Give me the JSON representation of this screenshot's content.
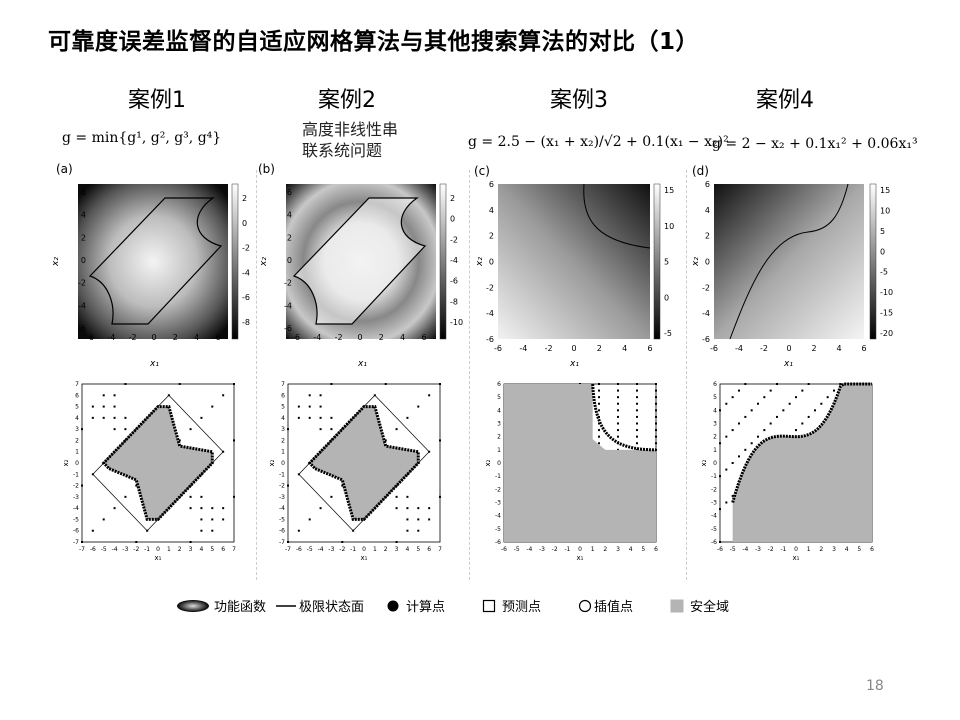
{
  "title": "可靠度误差监督的自适应网格算法与其他搜索算法的对比（1）",
  "cases": [
    "案例1",
    "案例2",
    "案例3",
    "案例4"
  ],
  "formulas": {
    "f1": "g = min{g¹, g², g³, g⁴}",
    "f3": "g = 2.5 − (x₁ + x₂)/√2 + 0.1(x₁ − x₂)²",
    "f4": "g = 2 − x₂ + 0.1x₁² + 0.06x₁³"
  },
  "subtitle": [
    "高度非线性串",
    "联系统问题"
  ],
  "panel_labels": [
    "(a)",
    "(b)",
    "(c)",
    "(d)"
  ],
  "axis": {
    "x_label": "x₁",
    "y_label": "x₂"
  },
  "ticks_top": [
    "-6",
    "-4",
    "-2",
    "0",
    "2",
    "4",
    "6"
  ],
  "colorbars": {
    "a": [
      "2",
      "0",
      "-2",
      "-4",
      "-6",
      "-8"
    ],
    "b": [
      "2",
      "0",
      "-2",
      "-4",
      "-6",
      "-8",
      "-10"
    ],
    "c": [
      "15",
      "10",
      "5",
      "0",
      "-5"
    ],
    "d": [
      "15",
      "10",
      "5",
      "0",
      "-5",
      "-10",
      "-15",
      "-20"
    ]
  },
  "ticks_bottom_ab": [
    "-7",
    "-6",
    "-5",
    "-4",
    "-3",
    "-2",
    "-1",
    "0",
    "1",
    "2",
    "3",
    "4",
    "5",
    "6",
    "7"
  ],
  "ticks_bottom_cd": [
    "-6",
    "-5",
    "-4",
    "-3",
    "-2",
    "-1",
    "0",
    "1",
    "2",
    "3",
    "4",
    "5",
    "6"
  ],
  "legend": {
    "func": "功能函数",
    "limit": "极限状态面",
    "computed": "计算点",
    "predicted": "预测点",
    "interp": "插值点",
    "safe": "安全域"
  },
  "page_number": "18",
  "colors": {
    "safe_gray": "#b4b4b4",
    "curve": "#000000"
  }
}
